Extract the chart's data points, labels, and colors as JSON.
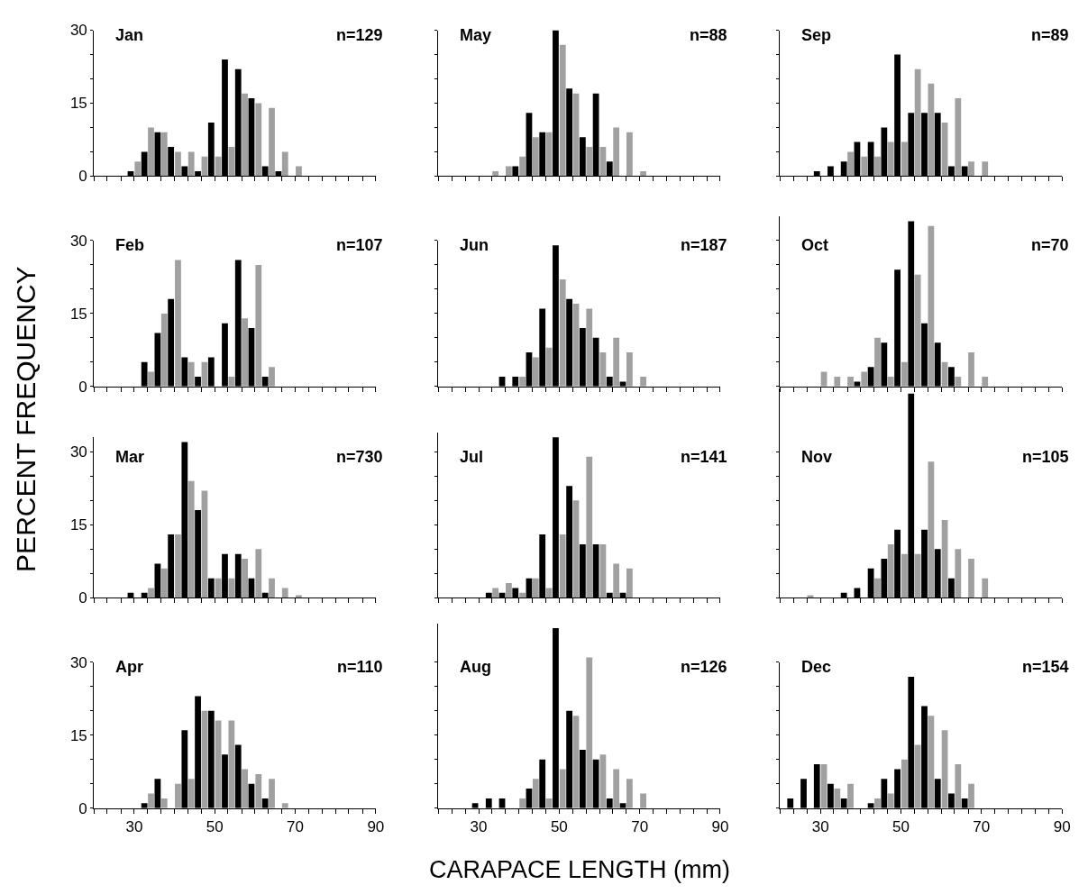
{
  "chart_data": [
    {
      "type": "bar",
      "title": "Jan",
      "annotations": [
        "n=129"
      ],
      "x": [
        21.7,
        25,
        28.3,
        31.7,
        35,
        38.3,
        41.7,
        45,
        48.3,
        51.7,
        55,
        58.3,
        61.7,
        65,
        68.3,
        71.7,
        75,
        78.3,
        81.7,
        85,
        88.3
      ],
      "xlim": [
        20,
        90
      ],
      "xticks": [
        {
          "value": 20,
          "label": null
        },
        {
          "value": 23.3,
          "label": null
        },
        {
          "value": 26.7,
          "label": null
        },
        30,
        {
          "value": 33.3,
          "label": null
        },
        {
          "value": 36.7,
          "label": null
        },
        {
          "value": 40,
          "label": null
        },
        {
          "value": 43.3,
          "label": null
        },
        {
          "value": 46.7,
          "label": null
        },
        50,
        {
          "value": 53.3,
          "label": null
        },
        {
          "value": 56.7,
          "label": null
        },
        {
          "value": 60,
          "label": null
        },
        {
          "value": 63.3,
          "label": null
        },
        {
          "value": 66.7,
          "label": null
        },
        70,
        {
          "value": 73.3,
          "label": null
        },
        {
          "value": 76.7,
          "label": null
        },
        {
          "value": 80,
          "label": null
        },
        {
          "value": 83.3,
          "label": null
        },
        {
          "value": 86.7,
          "label": null
        },
        90
      ],
      "ylim": [
        0,
        30
      ],
      "yticks": [
        0,
        {
          "value": 5,
          "label": null
        },
        {
          "value": 10,
          "label": null
        },
        15,
        {
          "value": 20,
          "label": null
        },
        {
          "value": 25,
          "label": null
        },
        30
      ],
      "tick_labels": "y",
      "series": [
        {
          "color": "#a0a0a0",
          "values": [
            0,
            0,
            0,
            3,
            10,
            9,
            5,
            5,
            4,
            4,
            6,
            17,
            15,
            14,
            5,
            2,
            0,
            0,
            0,
            0,
            0
          ]
        },
        {
          "color": "#000000",
          "values": [
            0,
            0,
            1,
            5,
            9,
            6,
            2,
            1,
            11,
            24,
            22,
            16,
            2,
            1,
            0,
            0,
            0,
            0,
            0,
            0,
            0
          ]
        }
      ]
    },
    {
      "type": "bar",
      "title": "May",
      "annotations": [
        "n=88"
      ],
      "x": [
        21.7,
        25,
        28.3,
        31.7,
        35,
        38.3,
        41.7,
        45,
        48.3,
        51.7,
        55,
        58.3,
        61.7,
        65,
        68.3,
        71.7,
        75,
        78.3,
        81.7,
        85,
        88.3
      ],
      "xlim": [
        20,
        90
      ],
      "xticks": [
        {
          "value": 20,
          "label": null
        },
        {
          "value": 23.3,
          "label": null
        },
        {
          "value": 26.7,
          "label": null
        },
        30,
        {
          "value": 33.3,
          "label": null
        },
        {
          "value": 36.7,
          "label": null
        },
        {
          "value": 40,
          "label": null
        },
        {
          "value": 43.3,
          "label": null
        },
        {
          "value": 46.7,
          "label": null
        },
        50,
        {
          "value": 53.3,
          "label": null
        },
        {
          "value": 56.7,
          "label": null
        },
        {
          "value": 60,
          "label": null
        },
        {
          "value": 63.3,
          "label": null
        },
        {
          "value": 66.7,
          "label": null
        },
        70,
        {
          "value": 73.3,
          "label": null
        },
        {
          "value": 76.7,
          "label": null
        },
        {
          "value": 80,
          "label": null
        },
        {
          "value": 83.3,
          "label": null
        },
        {
          "value": 86.7,
          "label": null
        },
        90
      ],
      "ylim": [
        0,
        30
      ],
      "yticks": [
        0,
        {
          "value": 5,
          "label": null
        },
        {
          "value": 10,
          "label": null
        },
        15,
        {
          "value": 20,
          "label": null
        },
        {
          "value": 25,
          "label": null
        },
        30
      ],
      "tick_labels": false,
      "series": [
        {
          "color": "#a0a0a0",
          "values": [
            0,
            0,
            0,
            0,
            1,
            2,
            4,
            8,
            9,
            27,
            17,
            6,
            6,
            10,
            9,
            1,
            0,
            0,
            0,
            0,
            0
          ]
        },
        {
          "color": "#000000",
          "values": [
            0,
            0,
            0,
            0,
            0,
            2,
            13,
            9,
            30,
            18,
            8,
            17,
            3,
            0,
            0,
            0,
            0,
            0,
            0,
            0,
            0
          ]
        }
      ]
    },
    {
      "type": "bar",
      "title": "Sep",
      "annotations": [
        "n=89"
      ],
      "x": [
        21.7,
        25,
        28.3,
        31.7,
        35,
        38.3,
        41.7,
        45,
        48.3,
        51.7,
        55,
        58.3,
        61.7,
        65,
        68.3,
        71.7,
        75,
        78.3,
        81.7,
        85,
        88.3
      ],
      "xlim": [
        20,
        90
      ],
      "xticks": [
        {
          "value": 20,
          "label": null
        },
        {
          "value": 23.3,
          "label": null
        },
        {
          "value": 26.7,
          "label": null
        },
        30,
        {
          "value": 33.3,
          "label": null
        },
        {
          "value": 36.7,
          "label": null
        },
        {
          "value": 40,
          "label": null
        },
        {
          "value": 43.3,
          "label": null
        },
        {
          "value": 46.7,
          "label": null
        },
        50,
        {
          "value": 53.3,
          "label": null
        },
        {
          "value": 56.7,
          "label": null
        },
        {
          "value": 60,
          "label": null
        },
        {
          "value": 63.3,
          "label": null
        },
        {
          "value": 66.7,
          "label": null
        },
        70,
        {
          "value": 73.3,
          "label": null
        },
        {
          "value": 76.7,
          "label": null
        },
        {
          "value": 80,
          "label": null
        },
        {
          "value": 83.3,
          "label": null
        },
        {
          "value": 86.7,
          "label": null
        },
        90
      ],
      "ylim": [
        0,
        30
      ],
      "yticks": [
        0,
        {
          "value": 5,
          "label": null
        },
        {
          "value": 10,
          "label": null
        },
        15,
        {
          "value": 20,
          "label": null
        },
        {
          "value": 25,
          "label": null
        },
        30
      ],
      "tick_labels": false,
      "series": [
        {
          "color": "#a0a0a0",
          "values": [
            0,
            0,
            0,
            0,
            0,
            5,
            4,
            4,
            7,
            7,
            22,
            19,
            11,
            16,
            3,
            3,
            0,
            0,
            0,
            0,
            0
          ]
        },
        {
          "color": "#000000",
          "values": [
            0,
            0,
            1,
            2,
            3,
            7,
            7,
            10,
            25,
            13,
            13,
            13,
            2,
            2,
            0,
            0,
            0,
            0,
            0,
            0,
            0
          ]
        }
      ]
    },
    {
      "type": "bar",
      "title": "Feb",
      "annotations": [
        "n=107"
      ],
      "ylabel": "PERCENT FREQUENCY",
      "x": [
        21.7,
        25,
        28.3,
        31.7,
        35,
        38.3,
        41.7,
        45,
        48.3,
        51.7,
        55,
        58.3,
        61.7,
        65,
        68.3,
        71.7,
        75,
        78.3,
        81.7,
        85,
        88.3
      ],
      "xlim": [
        20,
        90
      ],
      "xticks": [
        {
          "value": 20,
          "label": null
        },
        {
          "value": 23.3,
          "label": null
        },
        {
          "value": 26.7,
          "label": null
        },
        30,
        {
          "value": 33.3,
          "label": null
        },
        {
          "value": 36.7,
          "label": null
        },
        {
          "value": 40,
          "label": null
        },
        {
          "value": 43.3,
          "label": null
        },
        {
          "value": 46.7,
          "label": null
        },
        50,
        {
          "value": 53.3,
          "label": null
        },
        {
          "value": 56.7,
          "label": null
        },
        {
          "value": 60,
          "label": null
        },
        {
          "value": 63.3,
          "label": null
        },
        {
          "value": 66.7,
          "label": null
        },
        70,
        {
          "value": 73.3,
          "label": null
        },
        {
          "value": 76.7,
          "label": null
        },
        {
          "value": 80,
          "label": null
        },
        {
          "value": 83.3,
          "label": null
        },
        {
          "value": 86.7,
          "label": null
        },
        90
      ],
      "ylim": [
        0,
        30
      ],
      "yticks": [
        0,
        {
          "value": 5,
          "label": null
        },
        {
          "value": 10,
          "label": null
        },
        15,
        {
          "value": 20,
          "label": null
        },
        {
          "value": 25,
          "label": null
        },
        30
      ],
      "tick_labels": "y",
      "series": [
        {
          "color": "#a0a0a0",
          "values": [
            0,
            0,
            0,
            0,
            3,
            15,
            26,
            5,
            5,
            0,
            2,
            14,
            25,
            4,
            0,
            0,
            0,
            0,
            0,
            0,
            0
          ]
        },
        {
          "color": "#000000",
          "values": [
            0,
            0,
            0,
            5,
            11,
            18,
            6,
            2,
            6,
            13,
            26,
            12,
            2,
            0,
            0,
            0,
            0,
            0,
            0,
            0,
            0
          ]
        }
      ]
    },
    {
      "type": "bar",
      "title": "Jun",
      "annotations": [
        "n=187"
      ],
      "x": [
        21.7,
        25,
        28.3,
        31.7,
        35,
        38.3,
        41.7,
        45,
        48.3,
        51.7,
        55,
        58.3,
        61.7,
        65,
        68.3,
        71.7,
        75,
        78.3,
        81.7,
        85,
        88.3
      ],
      "xlim": [
        20,
        90
      ],
      "xticks": [
        {
          "value": 20,
          "label": null
        },
        {
          "value": 23.3,
          "label": null
        },
        {
          "value": 26.7,
          "label": null
        },
        30,
        {
          "value": 33.3,
          "label": null
        },
        {
          "value": 36.7,
          "label": null
        },
        {
          "value": 40,
          "label": null
        },
        {
          "value": 43.3,
          "label": null
        },
        {
          "value": 46.7,
          "label": null
        },
        50,
        {
          "value": 53.3,
          "label": null
        },
        {
          "value": 56.7,
          "label": null
        },
        {
          "value": 60,
          "label": null
        },
        {
          "value": 63.3,
          "label": null
        },
        {
          "value": 66.7,
          "label": null
        },
        70,
        {
          "value": 73.3,
          "label": null
        },
        {
          "value": 76.7,
          "label": null
        },
        {
          "value": 80,
          "label": null
        },
        {
          "value": 83.3,
          "label": null
        },
        {
          "value": 86.7,
          "label": null
        },
        90
      ],
      "ylim": [
        0,
        30
      ],
      "yticks": [
        0,
        {
          "value": 5,
          "label": null
        },
        {
          "value": 10,
          "label": null
        },
        15,
        {
          "value": 20,
          "label": null
        },
        {
          "value": 25,
          "label": null
        },
        30
      ],
      "tick_labels": false,
      "series": [
        {
          "color": "#a0a0a0",
          "values": [
            0,
            0,
            0,
            0,
            0,
            0,
            2,
            6,
            8,
            22,
            17,
            16,
            7,
            10,
            7,
            2,
            0,
            0,
            0,
            0,
            0
          ]
        },
        {
          "color": "#000000",
          "values": [
            0,
            0,
            0,
            0,
            2,
            2,
            7,
            16,
            29,
            18,
            12,
            10,
            2,
            1,
            0,
            0,
            0,
            0,
            0,
            0,
            0
          ]
        }
      ]
    },
    {
      "type": "bar",
      "title": "Oct",
      "annotations": [
        "n=70"
      ],
      "x": [
        21.7,
        25,
        28.3,
        31.7,
        35,
        38.3,
        41.7,
        45,
        48.3,
        51.7,
        55,
        58.3,
        61.7,
        65,
        68.3,
        71.7,
        75,
        78.3,
        81.7,
        85,
        88.3
      ],
      "xlim": [
        20,
        90
      ],
      "xticks": [
        {
          "value": 20,
          "label": null
        },
        {
          "value": 23.3,
          "label": null
        },
        {
          "value": 26.7,
          "label": null
        },
        30,
        {
          "value": 33.3,
          "label": null
        },
        {
          "value": 36.7,
          "label": null
        },
        {
          "value": 40,
          "label": null
        },
        {
          "value": 43.3,
          "label": null
        },
        {
          "value": 46.7,
          "label": null
        },
        50,
        {
          "value": 53.3,
          "label": null
        },
        {
          "value": 56.7,
          "label": null
        },
        {
          "value": 60,
          "label": null
        },
        {
          "value": 63.3,
          "label": null
        },
        {
          "value": 66.7,
          "label": null
        },
        70,
        {
          "value": 73.3,
          "label": null
        },
        {
          "value": 76.7,
          "label": null
        },
        {
          "value": 80,
          "label": null
        },
        {
          "value": 83.3,
          "label": null
        },
        {
          "value": 86.7,
          "label": null
        },
        90
      ],
      "ylim": [
        0,
        35
      ],
      "yticks": [
        0,
        {
          "value": 5,
          "label": null
        },
        {
          "value": 10,
          "label": null
        },
        15,
        {
          "value": 20,
          "label": null
        },
        {
          "value": 25,
          "label": null
        },
        30
      ],
      "tick_labels": false,
      "series": [
        {
          "color": "#a0a0a0",
          "values": [
            0,
            0,
            0,
            3,
            2,
            2,
            3,
            10,
            2,
            5,
            23,
            33,
            5,
            2,
            7,
            2,
            0,
            0,
            0,
            0,
            0
          ]
        },
        {
          "color": "#000000",
          "values": [
            0,
            0,
            0,
            0,
            0,
            1,
            4,
            9,
            24,
            34,
            13,
            9,
            4,
            0,
            0,
            0,
            0,
            0,
            0,
            0,
            0
          ]
        }
      ]
    },
    {
      "type": "bar",
      "title": "Mar",
      "annotations": [
        "n=730"
      ],
      "x": [
        21.7,
        25,
        28.3,
        31.7,
        35,
        38.3,
        41.7,
        45,
        48.3,
        51.7,
        55,
        58.3,
        61.7,
        65,
        68.3,
        71.7,
        75,
        78.3,
        81.7,
        85,
        88.3
      ],
      "xlim": [
        20,
        90
      ],
      "xticks": [
        {
          "value": 20,
          "label": null
        },
        {
          "value": 23.3,
          "label": null
        },
        {
          "value": 26.7,
          "label": null
        },
        30,
        {
          "value": 33.3,
          "label": null
        },
        {
          "value": 36.7,
          "label": null
        },
        {
          "value": 40,
          "label": null
        },
        {
          "value": 43.3,
          "label": null
        },
        {
          "value": 46.7,
          "label": null
        },
        50,
        {
          "value": 53.3,
          "label": null
        },
        {
          "value": 56.7,
          "label": null
        },
        {
          "value": 60,
          "label": null
        },
        {
          "value": 63.3,
          "label": null
        },
        {
          "value": 66.7,
          "label": null
        },
        70,
        {
          "value": 73.3,
          "label": null
        },
        {
          "value": 76.7,
          "label": null
        },
        {
          "value": 80,
          "label": null
        },
        {
          "value": 83.3,
          "label": null
        },
        {
          "value": 86.7,
          "label": null
        },
        90
      ],
      "ylim": [
        0,
        33
      ],
      "yticks": [
        0,
        {
          "value": 5,
          "label": null
        },
        {
          "value": 10,
          "label": null
        },
        15,
        {
          "value": 20,
          "label": null
        },
        {
          "value": 25,
          "label": null
        },
        30
      ],
      "tick_labels": "y",
      "series": [
        {
          "color": "#a0a0a0",
          "values": [
            0,
            0,
            0,
            0,
            2,
            6,
            13,
            24,
            22,
            4,
            4,
            8,
            10,
            4,
            2,
            0.5,
            0,
            0,
            0,
            0,
            0
          ]
        },
        {
          "color": "#000000",
          "values": [
            0,
            0,
            1,
            1,
            7,
            13,
            32,
            18,
            4,
            9,
            9,
            4,
            1,
            0,
            0,
            0,
            0,
            0,
            0,
            0,
            0
          ]
        }
      ]
    },
    {
      "type": "bar",
      "title": "Jul",
      "annotations": [
        "n=141"
      ],
      "x": [
        21.7,
        25,
        28.3,
        31.7,
        35,
        38.3,
        41.7,
        45,
        48.3,
        51.7,
        55,
        58.3,
        61.7,
        65,
        68.3,
        71.7,
        75,
        78.3,
        81.7,
        85,
        88.3
      ],
      "xlim": [
        20,
        90
      ],
      "xticks": [
        {
          "value": 20,
          "label": null
        },
        {
          "value": 23.3,
          "label": null
        },
        {
          "value": 26.7,
          "label": null
        },
        30,
        {
          "value": 33.3,
          "label": null
        },
        {
          "value": 36.7,
          "label": null
        },
        {
          "value": 40,
          "label": null
        },
        {
          "value": 43.3,
          "label": null
        },
        {
          "value": 46.7,
          "label": null
        },
        50,
        {
          "value": 53.3,
          "label": null
        },
        {
          "value": 56.7,
          "label": null
        },
        {
          "value": 60,
          "label": null
        },
        {
          "value": 63.3,
          "label": null
        },
        {
          "value": 66.7,
          "label": null
        },
        70,
        {
          "value": 73.3,
          "label": null
        },
        {
          "value": 76.7,
          "label": null
        },
        {
          "value": 80,
          "label": null
        },
        {
          "value": 83.3,
          "label": null
        },
        {
          "value": 86.7,
          "label": null
        },
        90
      ],
      "ylim": [
        0,
        34
      ],
      "yticks": [
        0,
        {
          "value": 5,
          "label": null
        },
        {
          "value": 10,
          "label": null
        },
        15,
        {
          "value": 20,
          "label": null
        },
        {
          "value": 25,
          "label": null
        },
        30
      ],
      "tick_labels": false,
      "series": [
        {
          "color": "#a0a0a0",
          "values": [
            0,
            0,
            0,
            0,
            2,
            3,
            1,
            4,
            2,
            13,
            20,
            29,
            11,
            7,
            6,
            0,
            0,
            0,
            0,
            0,
            0
          ]
        },
        {
          "color": "#000000",
          "values": [
            0,
            0,
            0,
            1,
            1,
            2,
            4,
            13,
            33,
            23,
            11,
            11,
            1,
            1,
            0,
            0,
            0,
            0,
            0,
            0,
            0
          ]
        }
      ]
    },
    {
      "type": "bar",
      "title": "Nov",
      "annotations": [
        "n=105"
      ],
      "x": [
        21.7,
        25,
        28.3,
        31.7,
        35,
        38.3,
        41.7,
        45,
        48.3,
        51.7,
        55,
        58.3,
        61.7,
        65,
        68.3,
        71.7,
        75,
        78.3,
        81.7,
        85,
        88.3
      ],
      "xlim": [
        20,
        90
      ],
      "xticks": [
        {
          "value": 20,
          "label": null
        },
        {
          "value": 23.3,
          "label": null
        },
        {
          "value": 26.7,
          "label": null
        },
        30,
        {
          "value": 33.3,
          "label": null
        },
        {
          "value": 36.7,
          "label": null
        },
        {
          "value": 40,
          "label": null
        },
        {
          "value": 43.3,
          "label": null
        },
        {
          "value": 46.7,
          "label": null
        },
        50,
        {
          "value": 53.3,
          "label": null
        },
        {
          "value": 56.7,
          "label": null
        },
        {
          "value": 60,
          "label": null
        },
        {
          "value": 63.3,
          "label": null
        },
        {
          "value": 66.7,
          "label": null
        },
        70,
        {
          "value": 73.3,
          "label": null
        },
        {
          "value": 76.7,
          "label": null
        },
        {
          "value": 80,
          "label": null
        },
        {
          "value": 83.3,
          "label": null
        },
        {
          "value": 86.7,
          "label": null
        },
        90
      ],
      "ylim": [
        0,
        43
      ],
      "yticks": [
        0,
        {
          "value": 5,
          "label": null
        },
        {
          "value": 10,
          "label": null
        },
        15,
        {
          "value": 20,
          "label": null
        },
        {
          "value": 25,
          "label": null
        },
        30
      ],
      "tick_labels": false,
      "series": [
        {
          "color": "#a0a0a0",
          "values": [
            0,
            0,
            0.5,
            0,
            0,
            0,
            0,
            4,
            11,
            9,
            9,
            28,
            16,
            10,
            8,
            4,
            0,
            0,
            0,
            0,
            0
          ]
        },
        {
          "color": "#000000",
          "values": [
            0,
            0,
            0,
            0,
            1,
            2,
            6,
            8,
            14,
            42,
            14,
            10,
            4,
            0,
            0,
            0,
            0,
            0,
            0,
            0,
            0
          ]
        }
      ]
    },
    {
      "type": "bar",
      "title": "Apr",
      "annotations": [
        "n=110"
      ],
      "x": [
        21.7,
        25,
        28.3,
        31.7,
        35,
        38.3,
        41.7,
        45,
        48.3,
        51.7,
        55,
        58.3,
        61.7,
        65,
        68.3,
        71.7,
        75,
        78.3,
        81.7,
        85,
        88.3
      ],
      "xlim": [
        20,
        90
      ],
      "xticks": [
        {
          "value": 20,
          "label": null
        },
        {
          "value": 23.3,
          "label": null
        },
        {
          "value": 26.7,
          "label": null
        },
        30,
        {
          "value": 33.3,
          "label": null
        },
        {
          "value": 36.7,
          "label": null
        },
        {
          "value": 40,
          "label": null
        },
        {
          "value": 43.3,
          "label": null
        },
        {
          "value": 46.7,
          "label": null
        },
        50,
        {
          "value": 53.3,
          "label": null
        },
        {
          "value": 56.7,
          "label": null
        },
        {
          "value": 60,
          "label": null
        },
        {
          "value": 63.3,
          "label": null
        },
        {
          "value": 66.7,
          "label": null
        },
        70,
        {
          "value": 73.3,
          "label": null
        },
        {
          "value": 76.7,
          "label": null
        },
        {
          "value": 80,
          "label": null
        },
        {
          "value": 83.3,
          "label": null
        },
        {
          "value": 86.7,
          "label": null
        },
        90
      ],
      "ylim": [
        0,
        30
      ],
      "yticks": [
        0,
        {
          "value": 5,
          "label": null
        },
        {
          "value": 10,
          "label": null
        },
        15,
        {
          "value": 20,
          "label": null
        },
        {
          "value": 25,
          "label": null
        },
        30
      ],
      "series": [
        {
          "color": "#a0a0a0",
          "values": [
            0,
            0,
            0,
            0,
            3,
            2,
            5,
            6,
            20,
            18,
            18,
            8,
            7,
            6,
            1,
            0,
            0,
            0,
            0,
            0,
            0
          ]
        },
        {
          "color": "#000000",
          "values": [
            0,
            0,
            0,
            1,
            6,
            0,
            16,
            23,
            20,
            11,
            13,
            5,
            2,
            0,
            0,
            0,
            0,
            0,
            0,
            0,
            0
          ]
        }
      ]
    },
    {
      "type": "bar",
      "title": "Aug",
      "annotations": [
        "n=126"
      ],
      "xlabel": "CARAPACE LENGTH (mm)",
      "x": [
        21.7,
        25,
        28.3,
        31.7,
        35,
        38.3,
        41.7,
        45,
        48.3,
        51.7,
        55,
        58.3,
        61.7,
        65,
        68.3,
        71.7,
        75,
        78.3,
        81.7,
        85,
        88.3
      ],
      "xlim": [
        20,
        90
      ],
      "xticks": [
        {
          "value": 20,
          "label": null
        },
        {
          "value": 23.3,
          "label": null
        },
        {
          "value": 26.7,
          "label": null
        },
        30,
        {
          "value": 33.3,
          "label": null
        },
        {
          "value": 36.7,
          "label": null
        },
        {
          "value": 40,
          "label": null
        },
        {
          "value": 43.3,
          "label": null
        },
        {
          "value": 46.7,
          "label": null
        },
        50,
        {
          "value": 53.3,
          "label": null
        },
        {
          "value": 56.7,
          "label": null
        },
        {
          "value": 60,
          "label": null
        },
        {
          "value": 63.3,
          "label": null
        },
        {
          "value": 66.7,
          "label": null
        },
        70,
        {
          "value": 73.3,
          "label": null
        },
        {
          "value": 76.7,
          "label": null
        },
        {
          "value": 80,
          "label": null
        },
        {
          "value": 83.3,
          "label": null
        },
        {
          "value": 86.7,
          "label": null
        },
        90
      ],
      "ylim": [
        0,
        38
      ],
      "yticks": [
        0,
        {
          "value": 5,
          "label": null
        },
        {
          "value": 10,
          "label": null
        },
        15,
        {
          "value": 20,
          "label": null
        },
        {
          "value": 25,
          "label": null
        },
        30
      ],
      "tick_labels": "x",
      "series": [
        {
          "color": "#a0a0a0",
          "values": [
            0,
            0,
            0,
            0,
            0,
            0,
            2,
            6,
            2,
            8,
            19,
            31,
            11,
            8,
            6,
            3,
            0,
            0,
            0,
            0,
            0
          ]
        },
        {
          "color": "#000000",
          "values": [
            0,
            0,
            1,
            2,
            2,
            0,
            4,
            10,
            37,
            20,
            12,
            10,
            2,
            1,
            0,
            0,
            0,
            0,
            0,
            0,
            0
          ]
        }
      ]
    },
    {
      "type": "bar",
      "title": "Dec",
      "annotations": [
        "n=154"
      ],
      "x": [
        21.7,
        25,
        28.3,
        31.7,
        35,
        38.3,
        41.7,
        45,
        48.3,
        51.7,
        55,
        58.3,
        61.7,
        65,
        68.3,
        71.7,
        75,
        78.3,
        81.7,
        85,
        88.3
      ],
      "xlim": [
        20,
        90
      ],
      "xticks": [
        {
          "value": 20,
          "label": null
        },
        {
          "value": 23.3,
          "label": null
        },
        {
          "value": 26.7,
          "label": null
        },
        30,
        {
          "value": 33.3,
          "label": null
        },
        {
          "value": 36.7,
          "label": null
        },
        {
          "value": 40,
          "label": null
        },
        {
          "value": 43.3,
          "label": null
        },
        {
          "value": 46.7,
          "label": null
        },
        50,
        {
          "value": 53.3,
          "label": null
        },
        {
          "value": 56.7,
          "label": null
        },
        {
          "value": 60,
          "label": null
        },
        {
          "value": 63.3,
          "label": null
        },
        {
          "value": 66.7,
          "label": null
        },
        70,
        {
          "value": 73.3,
          "label": null
        },
        {
          "value": 76.7,
          "label": null
        },
        {
          "value": 80,
          "label": null
        },
        {
          "value": 83.3,
          "label": null
        },
        {
          "value": 86.7,
          "label": null
        },
        90
      ],
      "ylim": [
        0,
        30
      ],
      "yticks": [
        0,
        {
          "value": 5,
          "label": null
        },
        {
          "value": 10,
          "label": null
        },
        15,
        {
          "value": 20,
          "label": null
        },
        {
          "value": 25,
          "label": null
        },
        30
      ],
      "tick_labels": "x",
      "series": [
        {
          "color": "#a0a0a0",
          "values": [
            0,
            0,
            0,
            9,
            4,
            5,
            0,
            2,
            3,
            10,
            13,
            19,
            16,
            9,
            5,
            0,
            0,
            0,
            0,
            0,
            0
          ]
        },
        {
          "color": "#000000",
          "values": [
            2,
            6,
            9,
            5,
            2,
            0,
            1,
            6,
            8,
            27,
            21,
            6,
            3,
            2,
            0,
            0,
            0,
            0,
            0,
            0,
            0
          ]
        }
      ]
    }
  ]
}
